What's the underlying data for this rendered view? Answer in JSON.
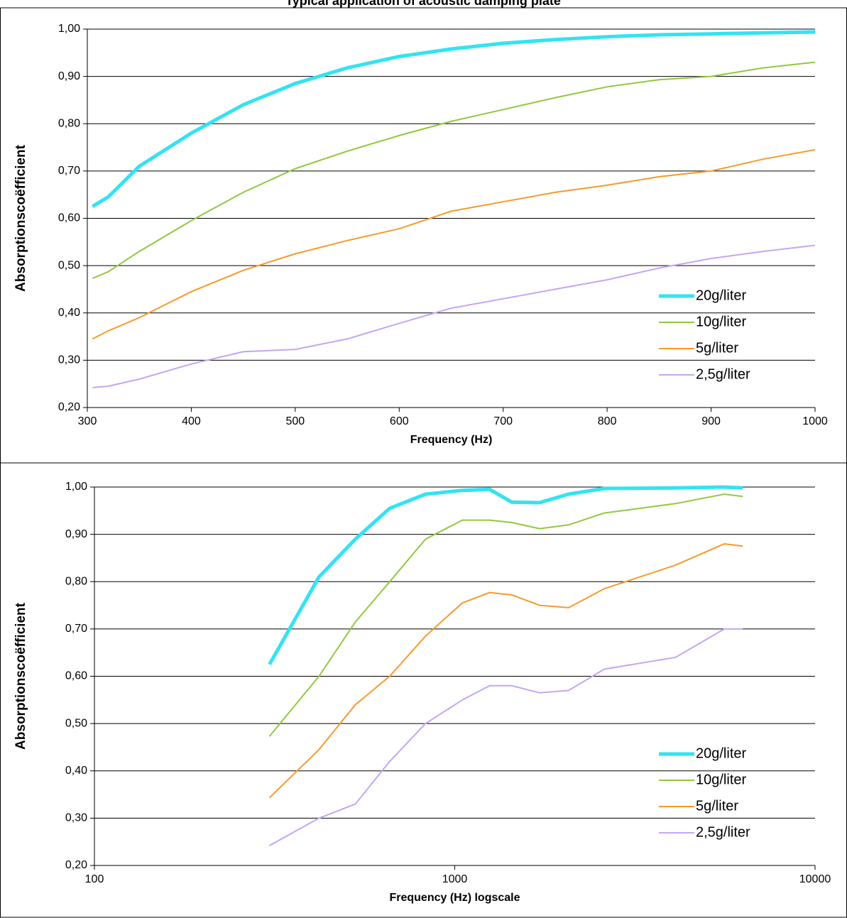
{
  "title": "Typical application of acoustic damping plate",
  "chart_data": [
    {
      "type": "line",
      "xlabel": "Frequency (Hz)",
      "ylabel": "Absorptionscoëfficient",
      "x": [
        305,
        320,
        350,
        400,
        450,
        500,
        550,
        600,
        650,
        700,
        750,
        800,
        850,
        900,
        950,
        1000
      ],
      "series": [
        {
          "name": "20g/liter",
          "color": "#33e3f2",
          "values": [
            0.625,
            0.645,
            0.71,
            0.78,
            0.84,
            0.885,
            0.918,
            0.942,
            0.958,
            0.97,
            0.978,
            0.984,
            0.988,
            0.99,
            0.992,
            0.994
          ]
        },
        {
          "name": "10g/liter",
          "color": "#92c83e",
          "values": [
            0.473,
            0.487,
            0.53,
            0.595,
            0.655,
            0.705,
            0.742,
            0.775,
            0.805,
            0.83,
            0.855,
            0.878,
            0.893,
            0.9,
            0.918,
            0.93
          ]
        },
        {
          "name": "5g/liter",
          "color": "#f79a2a",
          "values": [
            0.345,
            0.362,
            0.39,
            0.445,
            0.49,
            0.525,
            0.553,
            0.578,
            0.615,
            0.635,
            0.655,
            0.67,
            0.688,
            0.7,
            0.725,
            0.745
          ]
        },
        {
          "name": "2,5g/liter",
          "color": "#c4a6f2",
          "values": [
            0.242,
            0.245,
            0.26,
            0.292,
            0.318,
            0.323,
            0.345,
            0.378,
            0.41,
            0.43,
            0.45,
            0.47,
            0.495,
            0.515,
            0.53,
            0.543
          ]
        }
      ],
      "xlim": [
        300,
        1000
      ],
      "xticks": [
        300,
        400,
        500,
        600,
        700,
        800,
        900,
        1000
      ],
      "ylim": [
        0.2,
        1.0
      ],
      "yticks": [
        {
          "value": 0.2,
          "label": "0,20"
        },
        {
          "value": 0.3,
          "label": "0,30"
        },
        {
          "value": 0.4,
          "label": "0,40"
        },
        {
          "value": 0.5,
          "label": "0,50"
        },
        {
          "value": 0.6,
          "label": "0,60"
        },
        {
          "value": 0.7,
          "label": "0,70"
        },
        {
          "value": 0.8,
          "label": "0,80"
        },
        {
          "value": 0.9,
          "label": "0,90"
        },
        {
          "value": 1.0,
          "label": "1,00"
        }
      ],
      "grid": true,
      "legend": "lower right"
    },
    {
      "type": "line",
      "xlabel": "Frequency (Hz)  logscale",
      "ylabel": "Absorptionscoëfficient",
      "xscale": "log",
      "x": [
        306,
        420,
        530,
        660,
        830,
        1050,
        1250,
        1440,
        1720,
        2070,
        2600,
        4100,
        5600,
        6300
      ],
      "series": [
        {
          "name": "20g/liter",
          "color": "#33e3f2",
          "values": [
            0.625,
            0.81,
            0.89,
            0.955,
            0.985,
            0.993,
            0.995,
            0.968,
            0.967,
            0.985,
            0.997,
            0.998,
            1.0,
            0.998
          ]
        },
        {
          "name": "10g/liter",
          "color": "#92c83e",
          "values": [
            0.473,
            0.6,
            0.715,
            0.8,
            0.89,
            0.93,
            0.93,
            0.925,
            0.912,
            0.92,
            0.945,
            0.965,
            0.985,
            0.98
          ]
        },
        {
          "name": "5g/liter",
          "color": "#f79a2a",
          "values": [
            0.343,
            0.445,
            0.54,
            0.6,
            0.685,
            0.755,
            0.777,
            0.772,
            0.75,
            0.745,
            0.785,
            0.835,
            0.88,
            0.875
          ]
        },
        {
          "name": "2,5g/liter",
          "color": "#c4a6f2",
          "values": [
            0.242,
            0.3,
            0.33,
            0.42,
            0.5,
            0.55,
            0.58,
            0.58,
            0.565,
            0.57,
            0.615,
            0.64,
            0.7,
            0.7
          ]
        }
      ],
      "xlim": [
        100,
        10000
      ],
      "xticks": [
        100,
        1000,
        10000
      ],
      "ylim": [
        0.2,
        1.0
      ],
      "yticks": [
        {
          "value": 0.2,
          "label": "0,20"
        },
        {
          "value": 0.3,
          "label": "0,30"
        },
        {
          "value": 0.4,
          "label": "0,40"
        },
        {
          "value": 0.5,
          "label": "0,50"
        },
        {
          "value": 0.6,
          "label": "0,60"
        },
        {
          "value": 0.7,
          "label": "0,70"
        },
        {
          "value": 0.8,
          "label": "0,80"
        },
        {
          "value": 0.9,
          "label": "0,90"
        },
        {
          "value": 1.0,
          "label": "1,00"
        }
      ],
      "grid": true,
      "legend": "lower right"
    }
  ]
}
